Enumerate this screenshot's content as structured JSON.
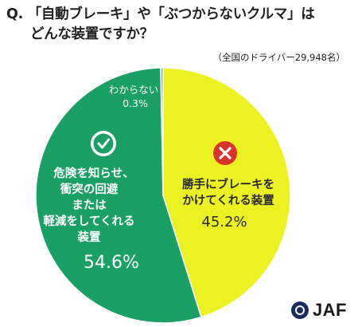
{
  "question": {
    "label": "Q.",
    "line1": "「自動ブレーキ」や「ぶつからないクルマ」は",
    "line2": "どんな装置ですか？"
  },
  "note": "（全国のドライバー29,948名）",
  "logo_text": "JAF",
  "chart_data": {
    "type": "pie",
    "title": "「自動ブレーキ」や「ぶつからないクルマ」はどんな装置ですか？",
    "slices": [
      {
        "label_lines": [
          "勝手にブレーキを",
          "かけてくれる装置"
        ],
        "value": 45.2,
        "value_label": "45.2%",
        "color": "#ecf222",
        "label_color": "#2a2a2a",
        "icon": "cross-icon",
        "icon_color": "#d9342b"
      },
      {
        "label_lines": [
          "危険を知らせ、",
          "衝突の回避",
          "または",
          "軽減をしてくれる",
          "装置"
        ],
        "value": 54.6,
        "value_label": "54.6%",
        "color": "#1aa064",
        "label_color": "#ffffff",
        "icon": "check-icon",
        "icon_color": "#1aa064"
      },
      {
        "label_lines": [
          "わからない"
        ],
        "value": 0.3,
        "value_label": "0.3%",
        "color": "#9a9a9a",
        "label_color": "#ffffff",
        "icon": null
      }
    ],
    "start_angle_deg": 0,
    "direction": "clockwise"
  }
}
